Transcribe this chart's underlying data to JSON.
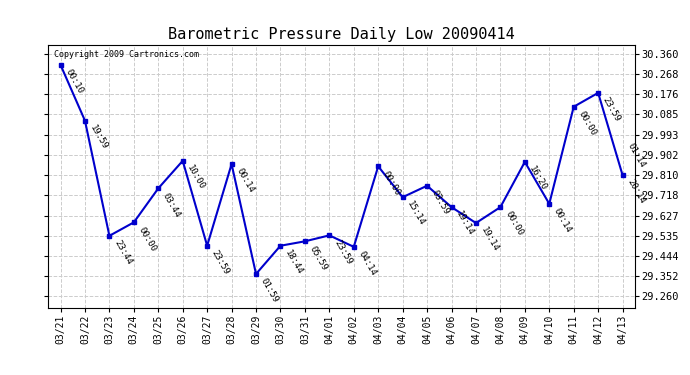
{
  "title": "Barometric Pressure Daily Low 20090414",
  "copyright_text": "Copyright 2009 Cartronics.com",
  "dates": [
    "03/21",
    "03/22",
    "03/23",
    "03/24",
    "03/25",
    "03/26",
    "03/27",
    "03/28",
    "03/29",
    "03/30",
    "03/31",
    "04/01",
    "04/02",
    "04/03",
    "04/04",
    "04/05",
    "04/06",
    "04/07",
    "04/08",
    "04/09",
    "04/10",
    "04/11",
    "04/12",
    "04/13"
  ],
  "y_values": [
    30.31,
    30.057,
    29.535,
    29.596,
    29.75,
    29.875,
    29.49,
    29.86,
    29.362,
    29.49,
    29.51,
    29.537,
    29.485,
    29.85,
    29.71,
    29.762,
    29.665,
    29.593,
    29.665,
    29.87,
    29.68,
    30.12,
    30.183,
    29.81
  ],
  "time_labels": [
    "00:10",
    "19:59",
    "23:44",
    "00:00",
    "03:44",
    "10:00",
    "23:59",
    "00:14",
    "01:59",
    "18:44",
    "05:59",
    "23:59",
    "04:14",
    "00:00",
    "15:14",
    "03:59",
    "19:14",
    "19:14",
    "00:00",
    "16:20",
    "00:14",
    "00:00",
    "23:59",
    "20:14"
  ],
  "extra_label_last": "01:14",
  "y_ticks": [
    29.26,
    29.352,
    29.444,
    29.535,
    29.627,
    29.718,
    29.81,
    29.902,
    29.993,
    30.085,
    30.176,
    30.268,
    30.36
  ],
  "line_color": "#0000CC",
  "line_width": 1.5,
  "marker_size": 3,
  "background_color": "#FFFFFF",
  "grid_color": "#CCCCCC",
  "title_fontsize": 11,
  "ylim_low": 29.21,
  "ylim_high": 30.4,
  "label_fontsize": 6.5,
  "tick_fontsize": 7.5,
  "xtick_fontsize": 7
}
